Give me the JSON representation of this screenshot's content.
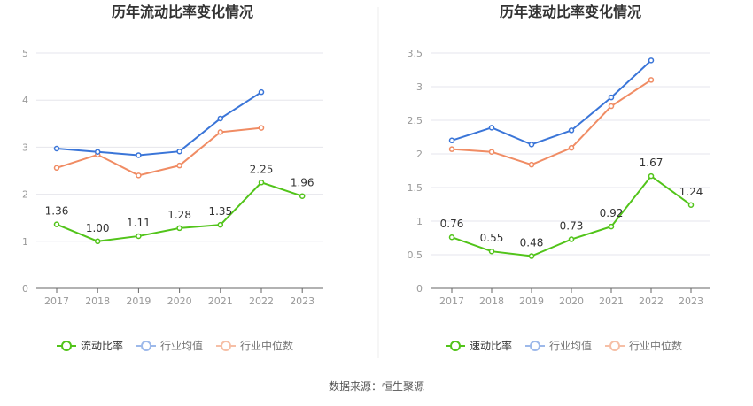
{
  "source_text": "数据来源：恒生聚源",
  "colors": {
    "ratio": "#52c41a",
    "industry_avg": "#3a75d8",
    "industry_median": "#f08c64"
  },
  "chart_data": [
    {
      "type": "line",
      "title": "历年流动比率变化情况",
      "x": [
        "2017",
        "2018",
        "2019",
        "2020",
        "2021",
        "2022",
        "2023"
      ],
      "ylim": [
        0,
        5
      ],
      "yticks": [
        0,
        1,
        2,
        3,
        4,
        5
      ],
      "ytick_labels": [
        "0",
        "1",
        "2",
        "3",
        "4",
        "5"
      ],
      "grid": true,
      "legend_position": "bottom",
      "series": [
        {
          "name": "流动比率",
          "key": "ratio",
          "values": [
            1.36,
            1.0,
            1.11,
            1.28,
            1.35,
            2.25,
            1.96
          ],
          "labels": [
            "1.36",
            "1.00",
            "1.11",
            "1.28",
            "1.35",
            "2.25",
            "1.96"
          ]
        },
        {
          "name": "行业均值",
          "key": "industry_avg",
          "values": [
            2.97,
            2.9,
            2.83,
            2.91,
            3.61,
            4.17,
            null
          ]
        },
        {
          "name": "行业中位数",
          "key": "industry_median",
          "values": [
            2.56,
            2.84,
            2.4,
            2.61,
            3.32,
            3.41,
            null
          ]
        }
      ]
    },
    {
      "type": "line",
      "title": "历年速动比率变化情况",
      "x": [
        "2017",
        "2018",
        "2019",
        "2020",
        "2021",
        "2022",
        "2023"
      ],
      "ylim": [
        0,
        3.5
      ],
      "yticks": [
        0,
        0.5,
        1,
        1.5,
        2,
        2.5,
        3,
        3.5
      ],
      "ytick_labels": [
        "0",
        "0.5",
        "1",
        "1.5",
        "2",
        "2.5",
        "3",
        "3.5"
      ],
      "grid": true,
      "legend_position": "bottom",
      "series": [
        {
          "name": "速动比率",
          "key": "ratio",
          "values": [
            0.76,
            0.55,
            0.48,
            0.73,
            0.92,
            1.67,
            1.24
          ],
          "labels": [
            "0.76",
            "0.55",
            "0.48",
            "0.73",
            "0.92",
            "1.67",
            "1.24"
          ]
        },
        {
          "name": "行业均值",
          "key": "industry_avg",
          "values": [
            2.2,
            2.39,
            2.14,
            2.35,
            2.84,
            3.39,
            null
          ]
        },
        {
          "name": "行业中位数",
          "key": "industry_median",
          "values": [
            2.07,
            2.03,
            1.84,
            2.09,
            2.71,
            3.1,
            null
          ]
        }
      ]
    }
  ]
}
